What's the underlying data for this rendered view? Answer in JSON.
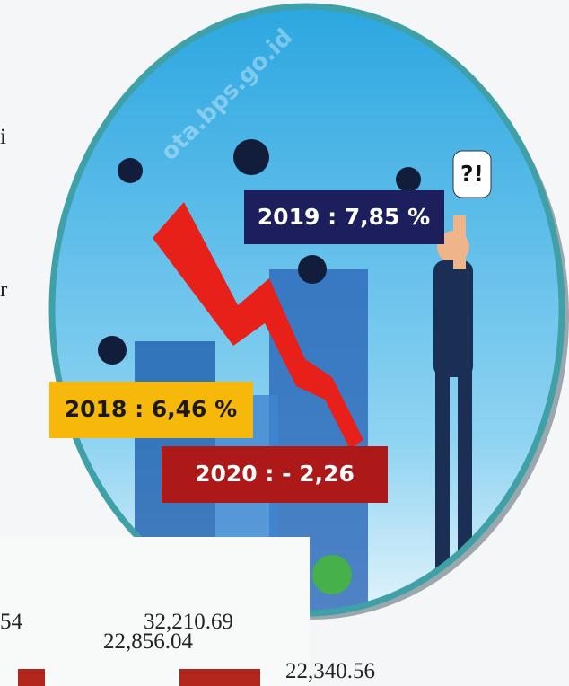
{
  "side_text": [
    "i",
    "r"
  ],
  "watermark": "ota.bps.go.id",
  "badge": "?!",
  "growth_labels": {
    "y2019": "2019 : 7,85 %",
    "y2018": "2018 : 6,46 %",
    "y2020": "2020 : - 2,26"
  },
  "table_fragment": [
    "54",
    "32,210.69",
    "22,856.04",
    "22,340.56"
  ]
}
